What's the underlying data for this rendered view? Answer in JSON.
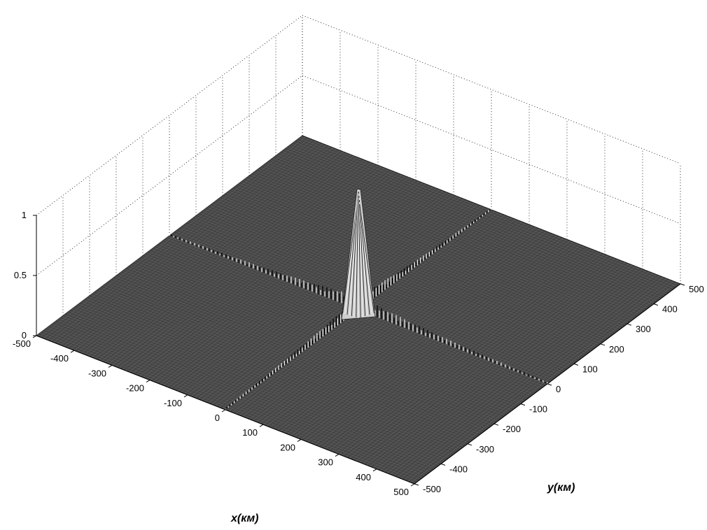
{
  "chart_data": {
    "type": "surface",
    "title": "",
    "xlabel": "x(км)",
    "ylabel": "y(км)",
    "zlabel": "",
    "xlim": [
      -500,
      500
    ],
    "ylim": [
      -500,
      500
    ],
    "zlim": [
      0,
      1
    ],
    "x_ticks": [
      "-500",
      "-400",
      "-300",
      "-200",
      "-100",
      "0",
      "100",
      "200",
      "300",
      "400",
      "500"
    ],
    "y_ticks": [
      "-500",
      "-400",
      "-300",
      "-200",
      "-100",
      "0",
      "100",
      "200",
      "300",
      "400",
      "500"
    ],
    "z_ticks": [
      "0",
      "0.5",
      "1"
    ],
    "grid": true,
    "colormap": "gray",
    "peak": {
      "x": 0,
      "y": 0,
      "z": 1.0
    },
    "sidelobe_ridges": [
      {
        "along": "x",
        "at_y": 0,
        "z_max": 0.12
      },
      {
        "along": "y",
        "at_x": 0,
        "z_max": 0.12
      }
    ],
    "base_level": 0.0
  }
}
